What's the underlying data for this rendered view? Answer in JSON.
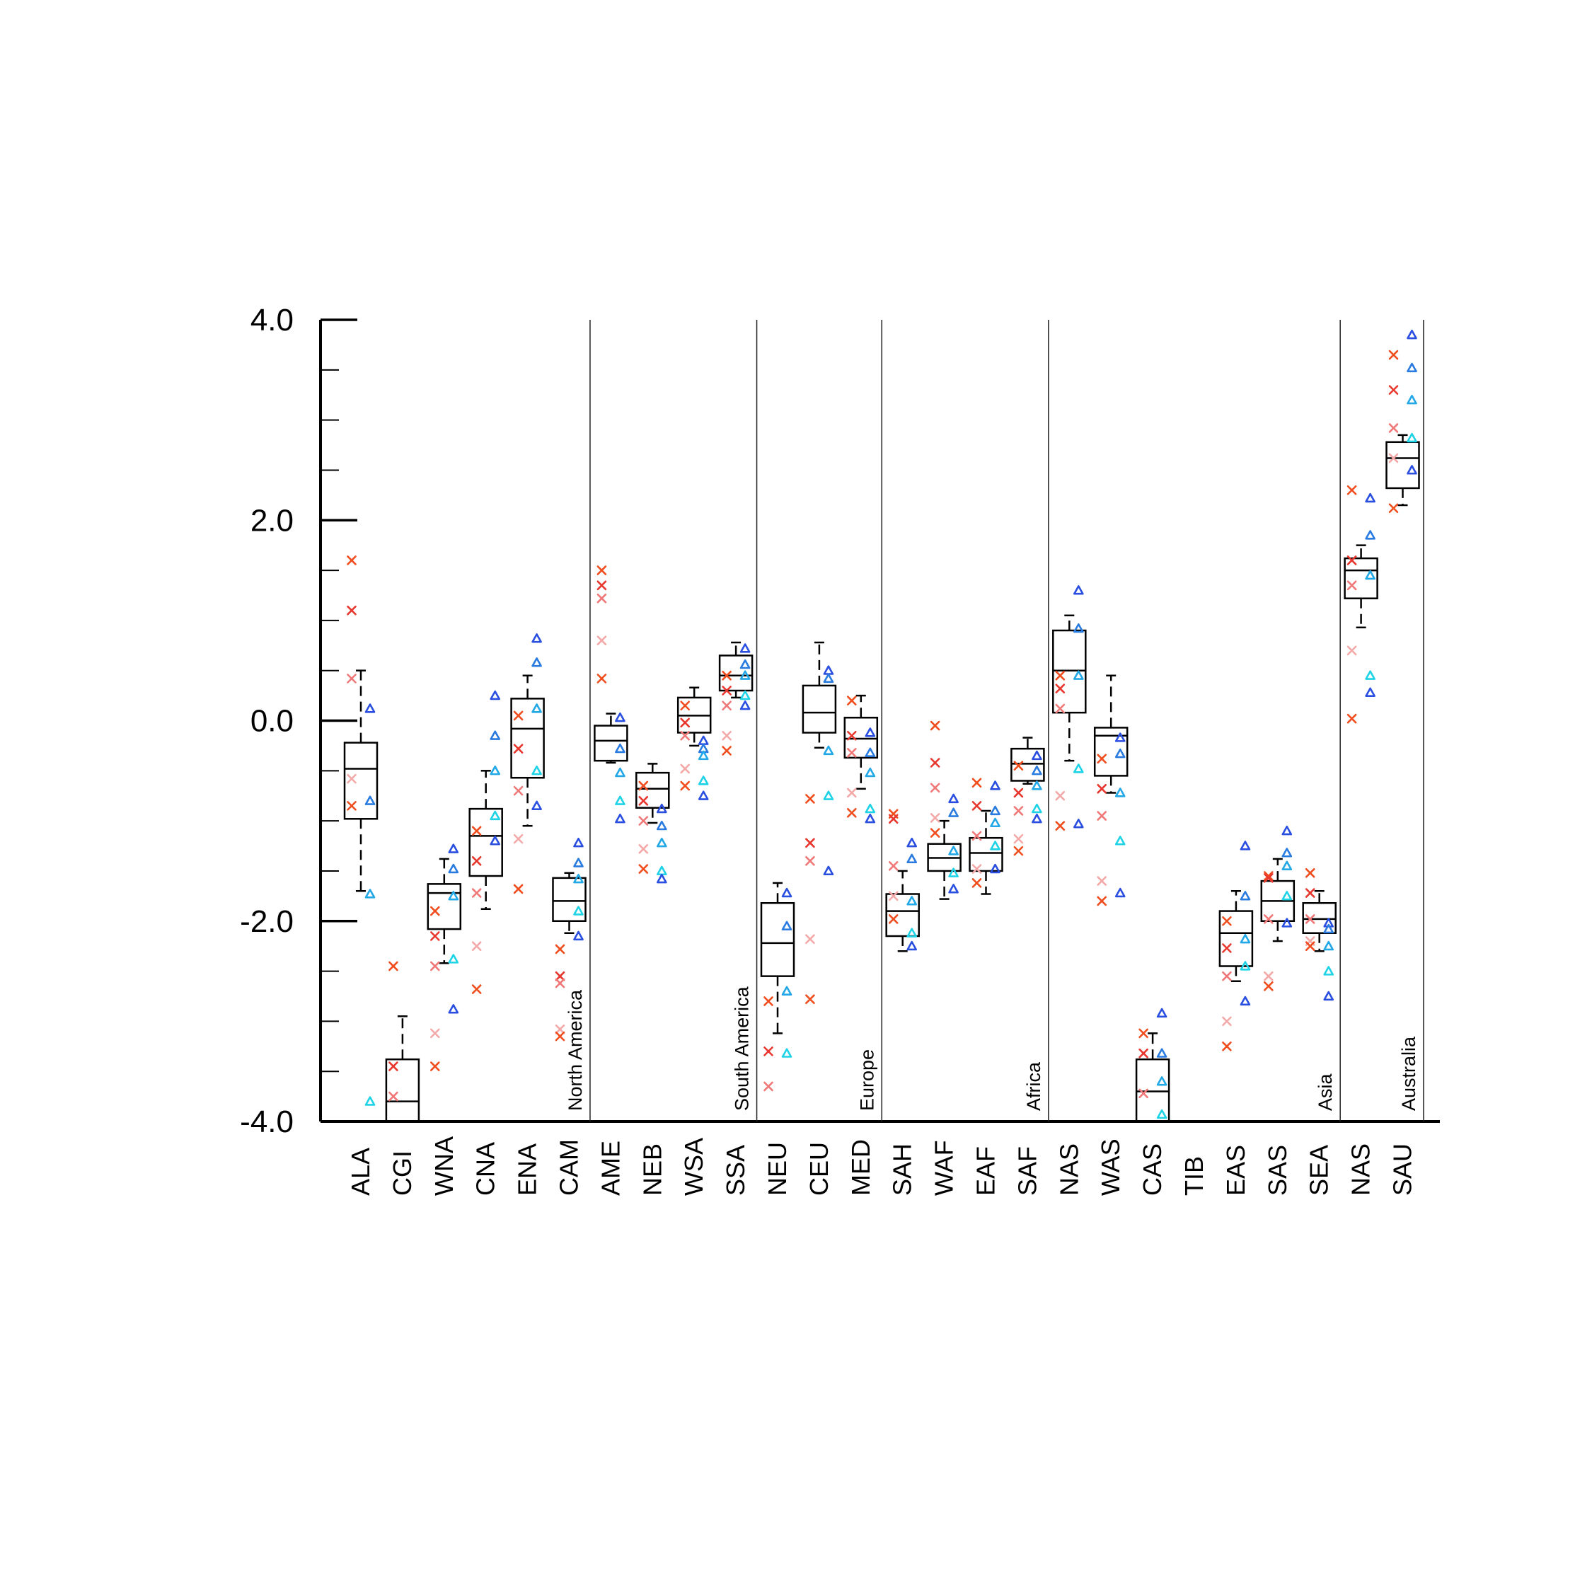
{
  "chart_data": {
    "type": "box",
    "ylim": [
      -4.0,
      4.0
    ],
    "yticks": [
      "4.0",
      "2.0",
      "0.0",
      "-2.0",
      "-4.0"
    ],
    "grid": false,
    "categories": [
      "ALA",
      "CGI",
      "WNA",
      "CNA",
      "ENA",
      "CAM",
      "AME",
      "NEB",
      "WSA",
      "SSA",
      "NEU",
      "CEU",
      "MED",
      "SAH",
      "WAF",
      "EAF",
      "SAF",
      "NAS",
      "WAS",
      "CAS",
      "TIB",
      "EAS",
      "SAS",
      "SEA",
      "NAS",
      "SAU"
    ],
    "groups": [
      {
        "name": "North America",
        "members": [
          "ALA",
          "CGI",
          "WNA",
          "CNA",
          "ENA",
          "CAM"
        ]
      },
      {
        "name": "South America",
        "members": [
          "AME",
          "NEB",
          "WSA",
          "SSA"
        ]
      },
      {
        "name": "Europe",
        "members": [
          "NEU",
          "CEU",
          "MED"
        ]
      },
      {
        "name": "Africa",
        "members": [
          "SAH",
          "WAF",
          "EAF",
          "SAF"
        ]
      },
      {
        "name": "Asia",
        "members": [
          "NAS",
          "WAS",
          "CAS",
          "TIB",
          "EAS",
          "SAS",
          "SEA"
        ]
      },
      {
        "name": "Australia",
        "members": [
          "NAS",
          "SAU"
        ]
      }
    ],
    "marker_colors": {
      "cross": [
        "#f04e1e",
        "#e8372e",
        "#f07878",
        "#f4a9a9"
      ],
      "triangle": [
        "#2a4fe0",
        "#2a7be0",
        "#22a8e6",
        "#1fd3e6"
      ]
    },
    "boxes": [
      {
        "category": "ALA",
        "whisker_low": -1.7,
        "q1": -0.98,
        "median": -0.48,
        "q3": -0.22,
        "whisker_high": 0.5,
        "crosses": [
          1.6,
          1.1,
          0.42,
          -0.58,
          -0.85
        ],
        "triangles": [
          0.12,
          -0.8,
          -1.73,
          -3.8
        ]
      },
      {
        "category": "CGI",
        "whisker_low": -4.0,
        "q1": -4.0,
        "median": -3.8,
        "q3": -3.38,
        "whisker_high": -2.95,
        "crosses": [
          -2.45,
          -3.45,
          -3.75
        ],
        "triangles": []
      },
      {
        "category": "WNA",
        "whisker_low": -2.42,
        "q1": -2.08,
        "median": -1.72,
        "q3": -1.63,
        "whisker_high": -1.38,
        "crosses": [
          -1.9,
          -2.15,
          -2.45,
          -3.12,
          -3.45
        ],
        "triangles": [
          -1.28,
          -1.48,
          -1.75,
          -2.38,
          -2.88
        ]
      },
      {
        "category": "CNA",
        "whisker_low": -1.88,
        "q1": -1.55,
        "median": -1.15,
        "q3": -0.88,
        "whisker_high": -0.5,
        "crosses": [
          -1.1,
          -1.4,
          -1.72,
          -2.25,
          -2.68
        ],
        "triangles": [
          0.25,
          -0.15,
          -0.5,
          -0.95,
          -1.2
        ]
      },
      {
        "category": "ENA",
        "whisker_low": -1.05,
        "q1": -0.57,
        "median": -0.08,
        "q3": 0.22,
        "whisker_high": 0.45,
        "crosses": [
          0.05,
          -0.28,
          -0.7,
          -1.18,
          -1.68
        ],
        "triangles": [
          0.82,
          0.58,
          0.12,
          -0.5,
          -0.85
        ]
      },
      {
        "category": "CAM",
        "whisker_low": -2.12,
        "q1": -2.0,
        "median": -1.8,
        "q3": -1.57,
        "whisker_high": -1.52,
        "crosses": [
          -2.28,
          -2.55,
          -2.62,
          -3.08,
          -3.15
        ],
        "triangles": [
          -1.22,
          -1.42,
          -1.58,
          -1.9,
          -2.15
        ]
      },
      {
        "category": "AME",
        "whisker_low": -0.42,
        "q1": -0.4,
        "median": -0.2,
        "q3": -0.05,
        "whisker_high": 0.07,
        "crosses": [
          1.5,
          1.35,
          1.22,
          0.8,
          0.42
        ],
        "triangles": [
          0.03,
          -0.28,
          -0.52,
          -0.8,
          -0.98
        ]
      },
      {
        "category": "NEB",
        "whisker_low": -1.02,
        "q1": -0.87,
        "median": -0.68,
        "q3": -0.52,
        "whisker_high": -0.43,
        "crosses": [
          -0.65,
          -0.8,
          -1.0,
          -1.28,
          -1.48
        ],
        "triangles": [
          -0.88,
          -1.05,
          -1.22,
          -1.5,
          -1.58
        ]
      },
      {
        "category": "WSA",
        "whisker_low": -0.25,
        "q1": -0.12,
        "median": 0.05,
        "q3": 0.23,
        "whisker_high": 0.33,
        "crosses": [
          0.15,
          -0.02,
          -0.15,
          -0.48,
          -0.65
        ],
        "triangles": [
          -0.2,
          -0.28,
          -0.35,
          -0.6,
          -0.75
        ]
      },
      {
        "category": "SSA",
        "whisker_low": 0.23,
        "q1": 0.3,
        "median": 0.45,
        "q3": 0.65,
        "whisker_high": 0.78,
        "crosses": [
          0.45,
          0.3,
          0.15,
          -0.15,
          -0.3
        ],
        "triangles": [
          0.72,
          0.56,
          0.45,
          0.25,
          0.15
        ]
      },
      {
        "category": "NEU",
        "whisker_low": -3.12,
        "q1": -2.55,
        "median": -2.22,
        "q3": -1.82,
        "whisker_high": -1.62,
        "crosses": [
          -2.8,
          -3.3,
          -3.65
        ],
        "triangles": [
          -1.72,
          -2.05,
          -2.7,
          -3.32
        ]
      },
      {
        "category": "CEU",
        "whisker_low": -0.27,
        "q1": -0.12,
        "median": 0.08,
        "q3": 0.35,
        "whisker_high": 0.78,
        "crosses": [
          -0.78,
          -1.22,
          -1.4,
          -2.18,
          -2.78
        ],
        "triangles": [
          0.5,
          0.42,
          -0.3,
          -0.75,
          -1.5
        ]
      },
      {
        "category": "MED",
        "whisker_low": -0.68,
        "q1": -0.37,
        "median": -0.18,
        "q3": 0.03,
        "whisker_high": 0.25,
        "crosses": [
          0.2,
          -0.15,
          -0.32,
          -0.72,
          -0.92
        ],
        "triangles": [
          -0.12,
          -0.32,
          -0.52,
          -0.88,
          -0.98
        ]
      },
      {
        "category": "SAH",
        "whisker_low": -2.3,
        "q1": -2.15,
        "median": -1.9,
        "q3": -1.73,
        "whisker_high": -1.5,
        "crosses": [
          -0.93,
          -0.98,
          -1.45,
          -1.75,
          -1.98
        ],
        "triangles": [
          -1.22,
          -1.38,
          -1.8,
          -2.12,
          -2.25
        ]
      },
      {
        "category": "WAF",
        "whisker_low": -1.78,
        "q1": -1.5,
        "median": -1.37,
        "q3": -1.23,
        "whisker_high": -1.0,
        "crosses": [
          -0.05,
          -0.42,
          -0.67,
          -0.97,
          -1.12
        ],
        "triangles": [
          -0.78,
          -0.92,
          -1.3,
          -1.52,
          -1.68
        ]
      },
      {
        "category": "EAF",
        "whisker_low": -1.73,
        "q1": -1.5,
        "median": -1.32,
        "q3": -1.17,
        "whisker_high": -0.9,
        "crosses": [
          -0.62,
          -0.85,
          -1.15,
          -1.48,
          -1.62
        ],
        "triangles": [
          -0.65,
          -0.9,
          -1.02,
          -1.25,
          -1.48
        ]
      },
      {
        "category": "SAF",
        "whisker_low": -0.63,
        "q1": -0.6,
        "median": -0.43,
        "q3": -0.28,
        "whisker_high": -0.17,
        "crosses": [
          -0.45,
          -0.72,
          -0.9,
          -1.18,
          -1.3
        ],
        "triangles": [
          -0.35,
          -0.5,
          -0.65,
          -0.88,
          -0.98
        ]
      },
      {
        "category": "NAS",
        "whisker_low": -0.4,
        "q1": 0.08,
        "median": 0.5,
        "q3": 0.9,
        "whisker_high": 1.05,
        "crosses": [
          0.45,
          0.32,
          0.12,
          -0.75,
          -1.05
        ],
        "triangles": [
          1.3,
          0.92,
          0.45,
          -0.48,
          -1.03
        ]
      },
      {
        "category": "WAS",
        "whisker_low": -0.72,
        "q1": -0.55,
        "median": -0.15,
        "q3": -0.07,
        "whisker_high": 0.45,
        "crosses": [
          -0.38,
          -0.68,
          -0.95,
          -1.6,
          -1.8
        ],
        "triangles": [
          -0.17,
          -0.33,
          -0.72,
          -1.2,
          -1.72
        ]
      },
      {
        "category": "CAS",
        "whisker_low": -4.0,
        "q1": -4.0,
        "median": -3.7,
        "q3": -3.38,
        "whisker_high": -3.12,
        "crosses": [
          -3.12,
          -3.32,
          -3.72
        ],
        "triangles": [
          -2.92,
          -3.32,
          -3.6,
          -3.93
        ]
      },
      {
        "category": "TIB",
        "crosses": [],
        "triangles": []
      },
      {
        "category": "EAS",
        "whisker_low": -2.6,
        "q1": -2.45,
        "median": -2.12,
        "q3": -1.9,
        "whisker_high": -1.7,
        "crosses": [
          -2.0,
          -2.27,
          -2.55,
          -3.0,
          -3.25
        ],
        "triangles": [
          -1.25,
          -1.75,
          -2.18,
          -2.45,
          -2.8
        ]
      },
      {
        "category": "SAS",
        "whisker_low": -2.2,
        "q1": -2.0,
        "median": -1.8,
        "q3": -1.6,
        "whisker_high": -1.38,
        "crosses": [
          -1.55,
          -1.57,
          -1.98,
          -2.55,
          -2.65
        ],
        "triangles": [
          -1.1,
          -1.32,
          -1.45,
          -1.75,
          -2.02
        ]
      },
      {
        "category": "SEA",
        "whisker_low": -2.3,
        "q1": -2.12,
        "median": -1.98,
        "q3": -1.82,
        "whisker_high": -1.7,
        "crosses": [
          -1.52,
          -1.72,
          -1.98,
          -2.2,
          -2.25
        ],
        "triangles": [
          -2.02,
          -2.08,
          -2.25,
          -2.5,
          -2.75
        ]
      },
      {
        "category": "NAS",
        "whisker_low": 0.93,
        "q1": 1.22,
        "median": 1.5,
        "q3": 1.62,
        "whisker_high": 1.75,
        "crosses": [
          2.3,
          1.6,
          1.35,
          0.7,
          0.02
        ],
        "triangles": [
          2.22,
          1.85,
          1.45,
          0.45,
          0.28
        ]
      },
      {
        "category": "SAU",
        "whisker_low": 2.15,
        "q1": 2.32,
        "median": 2.62,
        "q3": 2.78,
        "whisker_high": 2.85,
        "crosses": [
          3.65,
          3.3,
          2.92,
          2.62,
          2.12
        ],
        "triangles": [
          3.85,
          3.52,
          3.2,
          2.82,
          2.5
        ]
      }
    ]
  }
}
